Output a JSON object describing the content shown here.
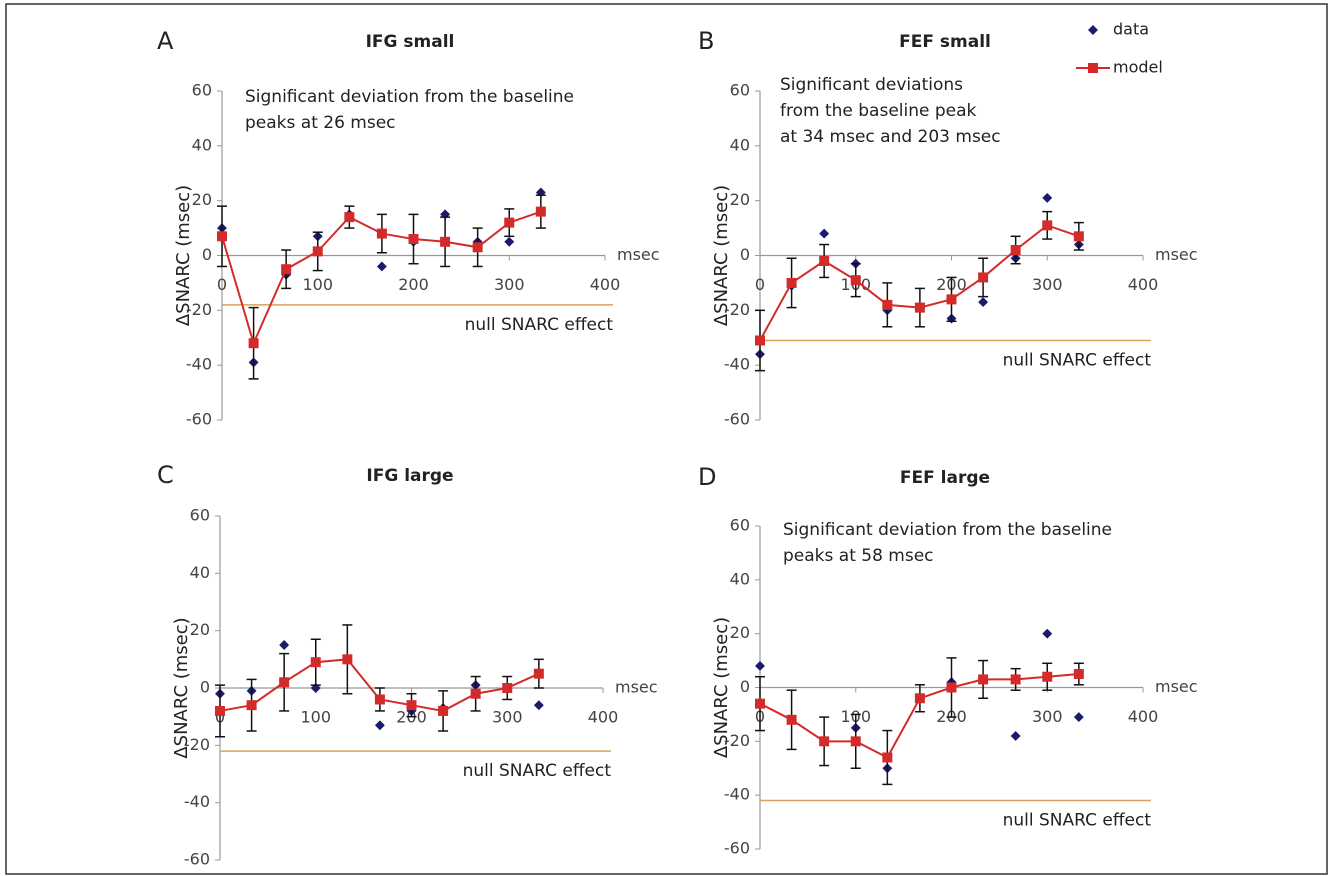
{
  "chart_data": [
    {
      "type": "line",
      "panel": "A",
      "title": "IFG small",
      "ylabel": "ΔSNARC (msec)",
      "xlabel": "msec",
      "xlim": [
        0,
        400
      ],
      "xticks": [
        0,
        100,
        200,
        300,
        400
      ],
      "ylim": [
        -60,
        60
      ],
      "yticks": [
        -60,
        -40,
        -20,
        0,
        20,
        40,
        60
      ],
      "annotation": [
        "Significant deviation from the baseline",
        "peaks at 26 msec"
      ],
      "null_line": {
        "value": -18,
        "label": "null SNARC effect",
        "color": "#d9a05b"
      },
      "x": [
        0,
        33,
        67,
        100,
        133,
        167,
        200,
        233,
        267,
        300,
        333
      ],
      "series": [
        {
          "name": "data",
          "type": "scatter",
          "color": "#1b1b6b",
          "values": [
            10,
            -39,
            -7,
            7,
            15,
            -4,
            5,
            15,
            5,
            5,
            23
          ]
        },
        {
          "name": "model",
          "type": "line",
          "color": "#d42a2a",
          "values": [
            7,
            -32,
            -5,
            1.5,
            14,
            8,
            6,
            5,
            3,
            12,
            16
          ],
          "errors": [
            11,
            13,
            7,
            7,
            4,
            7,
            9,
            9,
            7,
            5,
            6
          ]
        }
      ]
    },
    {
      "type": "line",
      "panel": "B",
      "title": "FEF small",
      "ylabel": "ΔSNARC (msec)",
      "xlabel": "msec",
      "legend": "upper right",
      "xlim": [
        0,
        400
      ],
      "xticks": [
        0,
        100,
        200,
        300,
        400
      ],
      "ylim": [
        -60,
        60
      ],
      "yticks": [
        -60,
        -40,
        -20,
        0,
        20,
        40,
        60
      ],
      "annotation": [
        "Significant deviations",
        "from the baseline peak",
        "at 34 msec and 203 msec"
      ],
      "null_line": {
        "value": -31,
        "label": "null SNARC effect",
        "color": "#d9a05b"
      },
      "x": [
        0,
        33,
        67,
        100,
        133,
        167,
        200,
        233,
        267,
        300,
        333
      ],
      "series": [
        {
          "name": "data",
          "type": "scatter",
          "color": "#1b1b6b",
          "values": [
            -36,
            -11,
            8,
            -3,
            -20,
            -19,
            -23,
            -17,
            -1,
            21,
            4
          ]
        },
        {
          "name": "model",
          "type": "line",
          "color": "#d42a2a",
          "values": [
            -31,
            -10,
            -2,
            -9,
            -18,
            -19,
            -16,
            -8,
            2,
            11,
            7
          ],
          "errors": [
            11,
            9,
            6,
            6,
            8,
            7,
            8,
            7,
            5,
            5,
            5
          ]
        }
      ]
    },
    {
      "type": "line",
      "panel": "C",
      "title": "IFG large",
      "ylabel": "ΔSNARC (msec)",
      "xlabel": "msec",
      "xlim": [
        0,
        400
      ],
      "xticks": [
        0,
        100,
        200,
        300,
        400
      ],
      "ylim": [
        -60,
        60
      ],
      "yticks": [
        -60,
        -40,
        -20,
        0,
        20,
        40,
        60
      ],
      "null_line": {
        "value": -22,
        "label": "null SNARC effect",
        "color": "#d9a05b"
      },
      "x": [
        0,
        33,
        67,
        100,
        133,
        167,
        200,
        233,
        267,
        300,
        333
      ],
      "series": [
        {
          "name": "data",
          "type": "scatter",
          "color": "#1b1b6b",
          "values": [
            -2,
            -1,
            15,
            0,
            10,
            -13,
            -8,
            -7,
            1,
            0,
            -6
          ]
        },
        {
          "name": "model",
          "type": "line",
          "color": "#d42a2a",
          "values": [
            -8,
            -6,
            2,
            9,
            10,
            -4,
            -6,
            -8,
            -2,
            0,
            5
          ],
          "errors": [
            9,
            9,
            10,
            8,
            12,
            4,
            4,
            7,
            6,
            4,
            5
          ]
        }
      ]
    },
    {
      "type": "line",
      "panel": "D",
      "title": "FEF large",
      "ylabel": "ΔSNARC (msec)",
      "xlabel": "msec",
      "xlim": [
        0,
        400
      ],
      "xticks": [
        0,
        100,
        200,
        300,
        400
      ],
      "ylim": [
        -60,
        60
      ],
      "yticks": [
        -60,
        -40,
        -20,
        0,
        20,
        40,
        60
      ],
      "annotation": [
        "Significant deviation from the baseline",
        "peaks at 58 msec"
      ],
      "null_line": {
        "value": -42,
        "label": "null SNARC effect",
        "color": "#d9a05b"
      },
      "x": [
        0,
        33,
        67,
        100,
        133,
        167,
        200,
        233,
        267,
        300,
        333
      ],
      "series": [
        {
          "name": "data",
          "type": "scatter",
          "color": "#1b1b6b",
          "values": [
            8,
            -12,
            -20,
            -15,
            -30,
            -4,
            2,
            3,
            -18,
            20,
            -11
          ]
        },
        {
          "name": "model",
          "type": "line",
          "color": "#d42a2a",
          "values": [
            -6,
            -12,
            -20,
            -20,
            -26,
            -4,
            0,
            3,
            3,
            4,
            5
          ],
          "errors": [
            10,
            11,
            9,
            10,
            10,
            5,
            11,
            7,
            4,
            5,
            4
          ]
        }
      ]
    }
  ]
}
